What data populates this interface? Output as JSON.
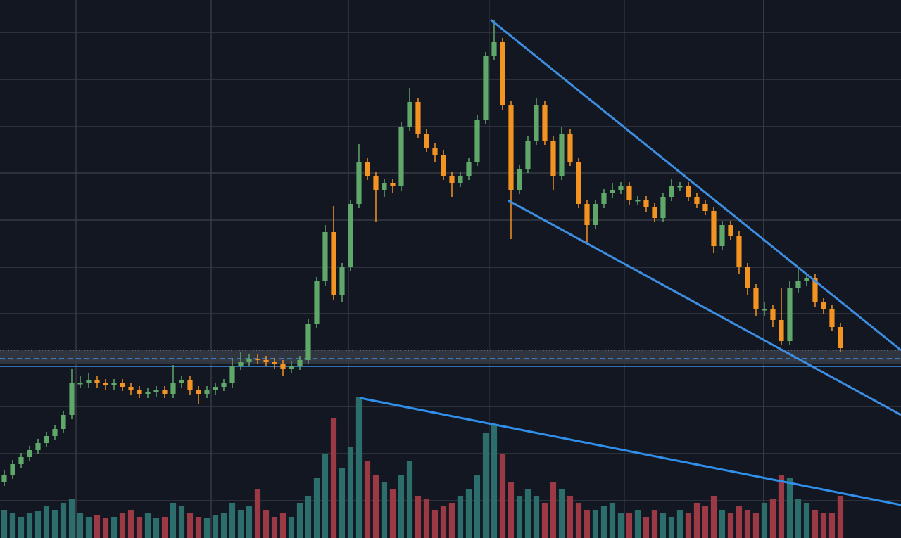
{
  "chart_data": {
    "type": "candlestick",
    "open": [
      80,
      90,
      105,
      115,
      125,
      135,
      145,
      155,
      175,
      220,
      220,
      225,
      220,
      217,
      220,
      215,
      210,
      205,
      207,
      210,
      205,
      220,
      225,
      210,
      205,
      210,
      215,
      220,
      245,
      250,
      255,
      253,
      250,
      247,
      240,
      245,
      253,
      305,
      365,
      435,
      345,
      385,
      475,
      535,
      515,
      495,
      505,
      500,
      585,
      620,
      575,
      555,
      545,
      515,
      505,
      515,
      535,
      595,
      685,
      705,
      615,
      495,
      525,
      565,
      615,
      565,
      515,
      575,
      535,
      475,
      445,
      475,
      490,
      495,
      500,
      480,
      480,
      470,
      455,
      485,
      500,
      500,
      485,
      475,
      465,
      415,
      445,
      430,
      385,
      355,
      325,
      325,
      310,
      280,
      355,
      365,
      370,
      335,
      325,
      300
    ],
    "high": [
      96,
      111,
      121,
      131,
      141,
      151,
      161,
      181,
      240,
      230,
      235,
      231,
      226,
      226,
      226,
      221,
      216,
      213,
      216,
      216,
      246,
      231,
      231,
      216,
      216,
      221,
      226,
      256,
      265,
      261,
      261,
      259,
      256,
      253,
      251,
      259,
      311,
      371,
      445,
      472,
      391,
      481,
      560,
      541,
      521,
      511,
      511,
      591,
      640,
      626,
      581,
      561,
      551,
      521,
      521,
      541,
      601,
      691,
      737,
      711,
      621,
      531,
      571,
      625,
      621,
      571,
      585,
      581,
      541,
      481,
      481,
      496,
      505,
      506,
      506,
      486,
      486,
      476,
      491,
      511,
      506,
      506,
      491,
      481,
      471,
      451,
      451,
      436,
      391,
      361,
      335,
      331,
      355,
      365,
      385,
      376,
      376,
      341,
      331,
      306
    ],
    "low": [
      74,
      84,
      99,
      109,
      119,
      129,
      139,
      149,
      169,
      214,
      214,
      214,
      211,
      211,
      209,
      204,
      199,
      199,
      201,
      199,
      199,
      214,
      204,
      190,
      199,
      204,
      209,
      214,
      239,
      244,
      247,
      244,
      241,
      230,
      234,
      239,
      247,
      299,
      359,
      339,
      335,
      379,
      469,
      509,
      450,
      485,
      490,
      494,
      579,
      569,
      549,
      535,
      509,
      485,
      499,
      509,
      529,
      589,
      679,
      609,
      425,
      489,
      519,
      559,
      559,
      495,
      509,
      529,
      469,
      420,
      439,
      469,
      484,
      489,
      474,
      474,
      464,
      449,
      449,
      479,
      494,
      479,
      469,
      459,
      405,
      409,
      424,
      375,
      345,
      315,
      315,
      300,
      274,
      274,
      349,
      359,
      329,
      319,
      294,
      264
    ],
    "close": [
      90,
      105,
      115,
      125,
      135,
      145,
      155,
      175,
      220,
      220,
      225,
      220,
      217,
      220,
      215,
      210,
      205,
      207,
      210,
      205,
      220,
      225,
      210,
      205,
      210,
      215,
      220,
      245,
      250,
      255,
      253,
      250,
      247,
      240,
      245,
      253,
      305,
      365,
      435,
      345,
      385,
      475,
      535,
      515,
      495,
      505,
      500,
      585,
      620,
      575,
      555,
      545,
      515,
      505,
      515,
      535,
      595,
      685,
      705,
      615,
      495,
      525,
      565,
      615,
      565,
      515,
      575,
      535,
      475,
      445,
      475,
      490,
      495,
      500,
      480,
      480,
      470,
      455,
      485,
      500,
      500,
      485,
      475,
      465,
      415,
      445,
      430,
      385,
      355,
      325,
      325,
      310,
      280,
      355,
      365,
      370,
      335,
      325,
      300,
      270
    ],
    "volume": [
      40,
      35,
      30,
      35,
      38,
      45,
      40,
      50,
      55,
      35,
      30,
      32,
      28,
      30,
      35,
      40,
      30,
      35,
      28,
      30,
      50,
      45,
      35,
      30,
      28,
      32,
      35,
      50,
      40,
      45,
      70,
      40,
      30,
      35,
      30,
      50,
      60,
      85,
      120,
      170,
      100,
      130,
      200,
      110,
      90,
      80,
      70,
      90,
      110,
      60,
      55,
      40,
      45,
      50,
      60,
      70,
      90,
      150,
      160,
      120,
      80,
      60,
      70,
      60,
      50,
      80,
      70,
      60,
      50,
      40,
      40,
      45,
      50,
      35,
      35,
      40,
      30,
      40,
      35,
      30,
      40,
      35,
      50,
      45,
      60,
      40,
      35,
      45,
      40,
      35,
      50,
      55,
      90,
      85,
      55,
      50,
      40,
      35,
      35,
      60
    ],
    "xlim": [
      -0.5,
      106.17
    ],
    "xticks": [
      8.5,
      24.5,
      40.75,
      57.4,
      73.4,
      89.9
    ],
    "ylim": [
      0,
      765
    ],
    "yticks": [
      719,
      652,
      585,
      519,
      452,
      385,
      319,
      253,
      187,
      120,
      53
    ],
    "volume_ylim": [
      0,
      200
    ],
    "grid": true,
    "up_color": "#5fa86a",
    "down_color": "#f39321",
    "volume_up_color": "#2b6e6c",
    "volume_down_color": "#9b3a44"
  }
}
